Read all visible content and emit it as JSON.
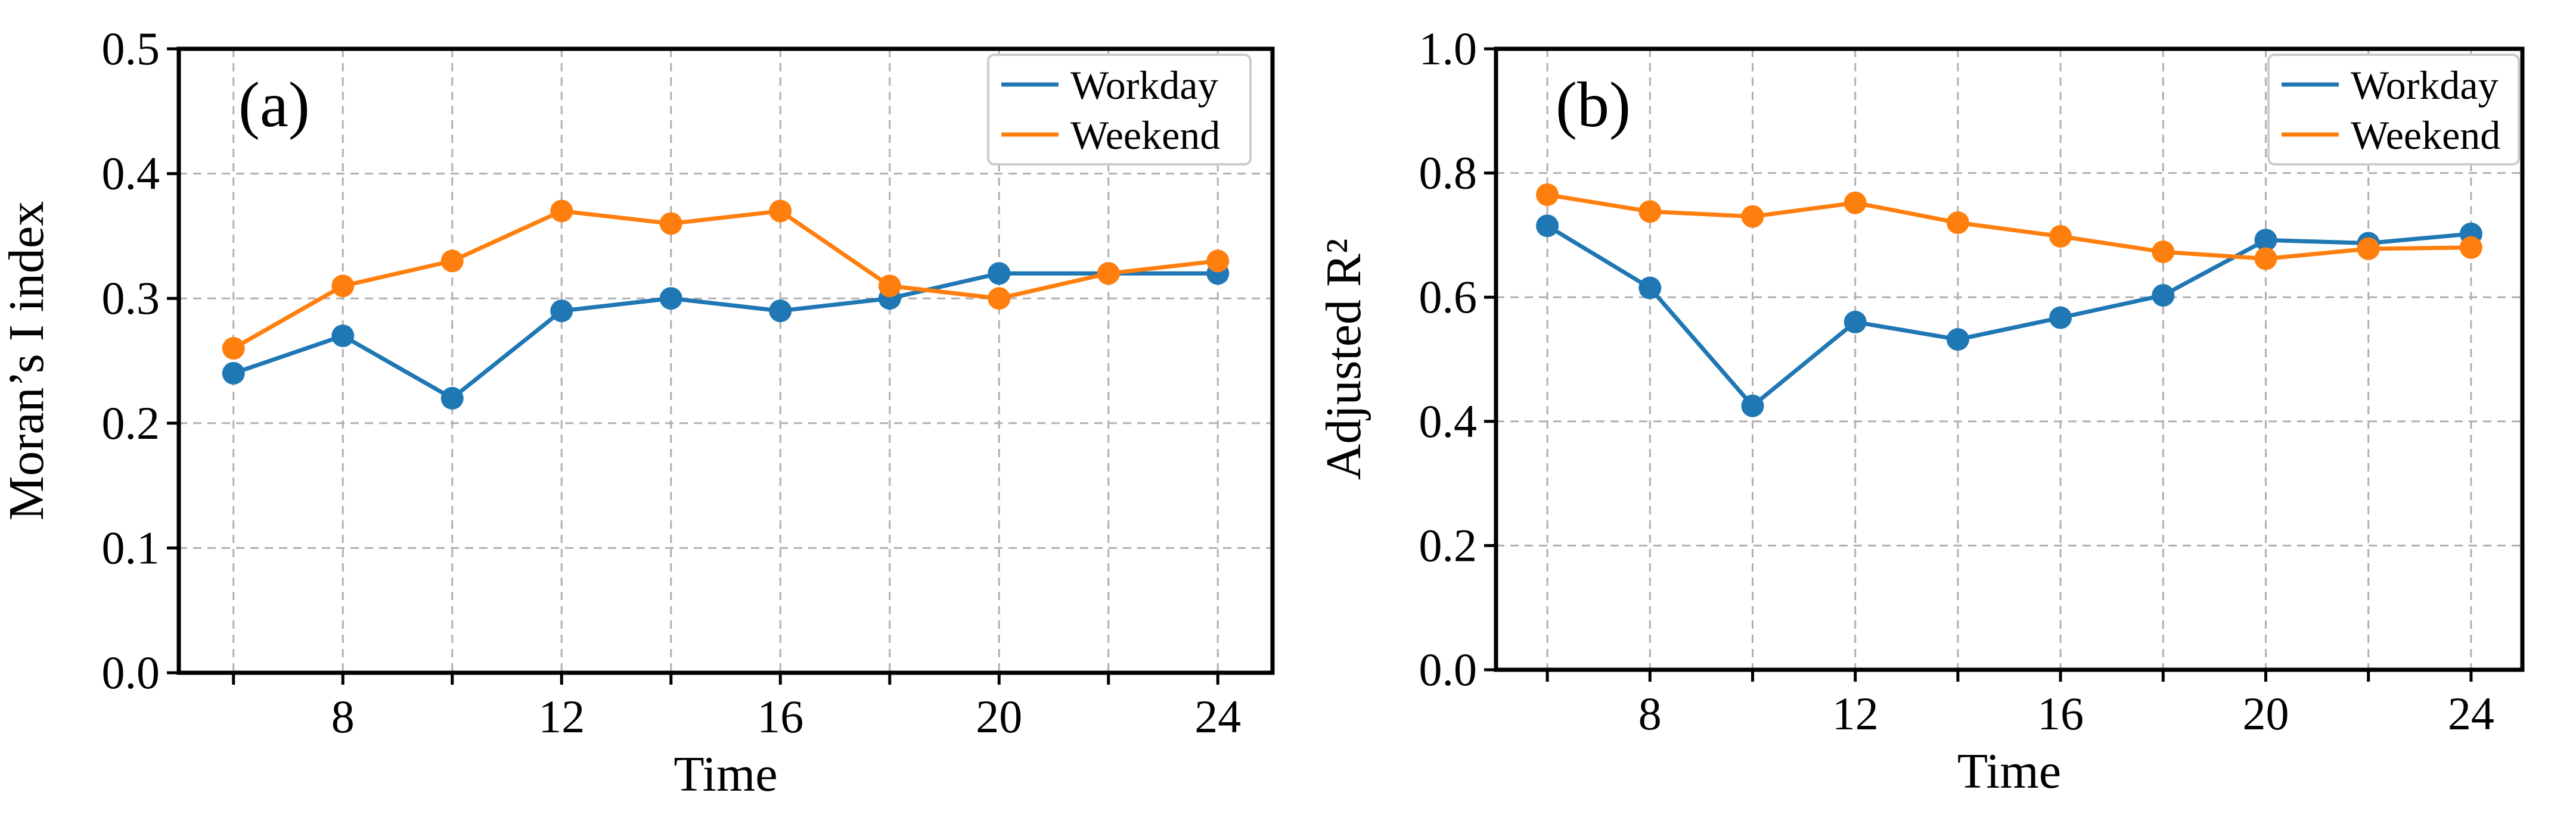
{
  "chart_data": [
    {
      "type": "line",
      "panel_label": "(a)",
      "xlabel": "Time",
      "ylabel": "Moran’s I index",
      "x": [
        6,
        8,
        10,
        12,
        14,
        16,
        18,
        20,
        22,
        24
      ],
      "xlim": [
        5,
        25
      ],
      "xticks": [
        6,
        8,
        10,
        12,
        14,
        16,
        18,
        20,
        22,
        24
      ],
      "xtick_labels": [
        "",
        "8",
        "",
        "12",
        "",
        "16",
        "",
        "20",
        "",
        "24"
      ],
      "ylim": [
        0.0,
        0.5
      ],
      "yticks": [
        0.0,
        0.1,
        0.2,
        0.3,
        0.4,
        0.5
      ],
      "ytick_labels": [
        "0.0",
        "0.1",
        "0.2",
        "0.3",
        "0.4",
        "0.5"
      ],
      "grid": true,
      "legend_position": "top-right",
      "series": [
        {
          "name": "Workday",
          "color": "#1f77b4",
          "values": [
            0.24,
            0.27,
            0.22,
            0.29,
            0.3,
            0.29,
            0.3,
            0.32,
            0.32,
            0.32
          ]
        },
        {
          "name": "Weekend",
          "color": "#ff7f0e",
          "values": [
            0.26,
            0.31,
            0.33,
            0.37,
            0.36,
            0.37,
            0.31,
            0.3,
            0.32,
            0.33
          ]
        }
      ]
    },
    {
      "type": "line",
      "panel_label": "(b)",
      "xlabel": "Time",
      "ylabel": "Adjusted R²",
      "x": [
        6,
        8,
        10,
        12,
        14,
        16,
        18,
        20,
        22,
        24
      ],
      "xlim": [
        5,
        25
      ],
      "xticks": [
        6,
        8,
        10,
        12,
        14,
        16,
        18,
        20,
        22,
        24
      ],
      "xtick_labels": [
        "",
        "8",
        "",
        "12",
        "",
        "16",
        "",
        "20",
        "",
        "24"
      ],
      "ylim": [
        0.0,
        1.0
      ],
      "yticks": [
        0.0,
        0.2,
        0.4,
        0.6,
        0.8,
        1.0
      ],
      "ytick_labels": [
        "0.0",
        "0.2",
        "0.4",
        "0.6",
        "0.8",
        "1.0"
      ],
      "grid": true,
      "legend_position": "top-right",
      "series": [
        {
          "name": "Workday",
          "color": "#1f77b4",
          "values": [
            0.715,
            0.615,
            0.425,
            0.56,
            0.532,
            0.567,
            0.603,
            0.692,
            0.687,
            0.702
          ]
        },
        {
          "name": "Weekend",
          "color": "#ff7f0e",
          "values": [
            0.765,
            0.738,
            0.73,
            0.752,
            0.72,
            0.698,
            0.673,
            0.662,
            0.678,
            0.68
          ]
        }
      ]
    }
  ]
}
